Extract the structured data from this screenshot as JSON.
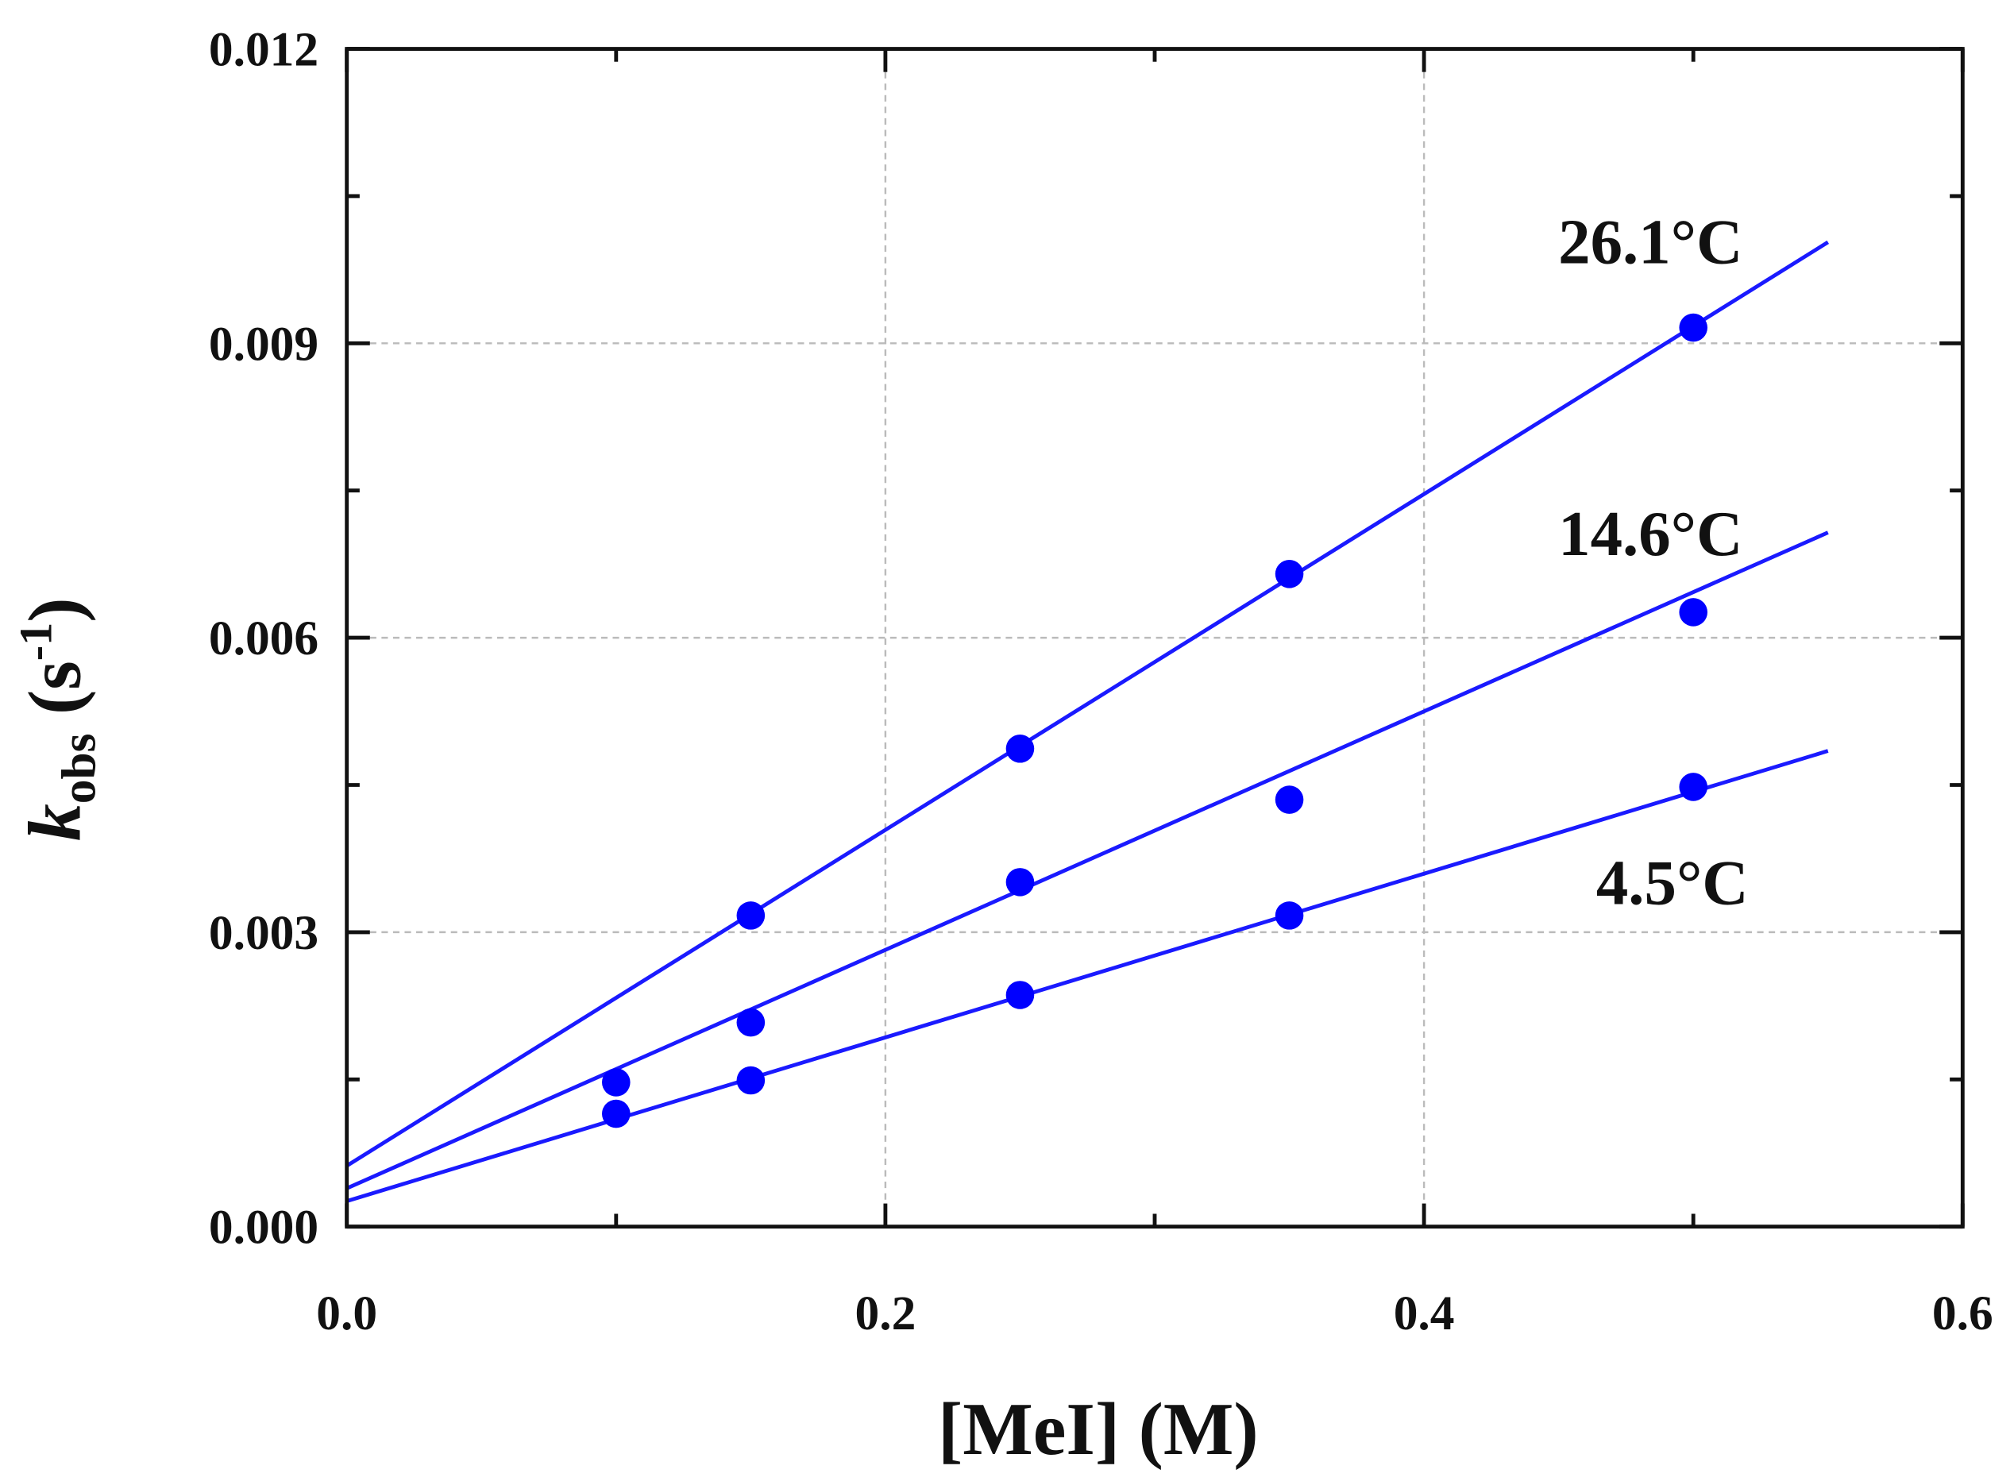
{
  "chart_data": {
    "type": "scatter",
    "xlabel": "[MeI] (M)",
    "ylabel": {
      "main": "k",
      "sub": "obs",
      "unit_open": " (s",
      "unit_sup": "-1",
      "unit_close": ")"
    },
    "xlim": [
      0,
      0.6
    ],
    "ylim": [
      0,
      0.012
    ],
    "xticks": [
      0.0,
      0.2,
      0.4,
      0.6
    ],
    "xtick_labels": [
      "0.0",
      "0.2",
      "0.4",
      "0.6"
    ],
    "yticks": [
      0,
      0.003,
      0.006,
      0.009,
      0.012
    ],
    "ytick_labels": [
      "0.000",
      "0.003",
      "0.006",
      "0.009",
      "0.012"
    ],
    "grid": true,
    "marker_color": "#0000ff",
    "line_color": "#1a1aff",
    "series": [
      {
        "name": "26.1°C",
        "x": [
          0.15,
          0.25,
          0.35,
          0.5
        ],
        "y": [
          0.00317,
          0.00487,
          0.00665,
          0.00916
        ],
        "fit": {
          "intercept": 0.00062,
          "slope": 0.01711,
          "x_end": 0.55
        }
      },
      {
        "name": "14.6°C",
        "x": [
          0.1,
          0.15,
          0.25,
          0.35,
          0.5
        ],
        "y": [
          0.00147,
          0.00208,
          0.00351,
          0.00435,
          0.00626
        ],
        "fit": {
          "intercept": 0.00039,
          "slope": 0.01215,
          "x_end": 0.55
        }
      },
      {
        "name": "4.5°C",
        "x": [
          0.1,
          0.15,
          0.25,
          0.35,
          0.5
        ],
        "y": [
          0.00115,
          0.00149,
          0.00236,
          0.00317,
          0.00448
        ],
        "fit": {
          "intercept": 0.00026,
          "slope": 0.00834,
          "x_end": 0.55
        }
      }
    ]
  }
}
